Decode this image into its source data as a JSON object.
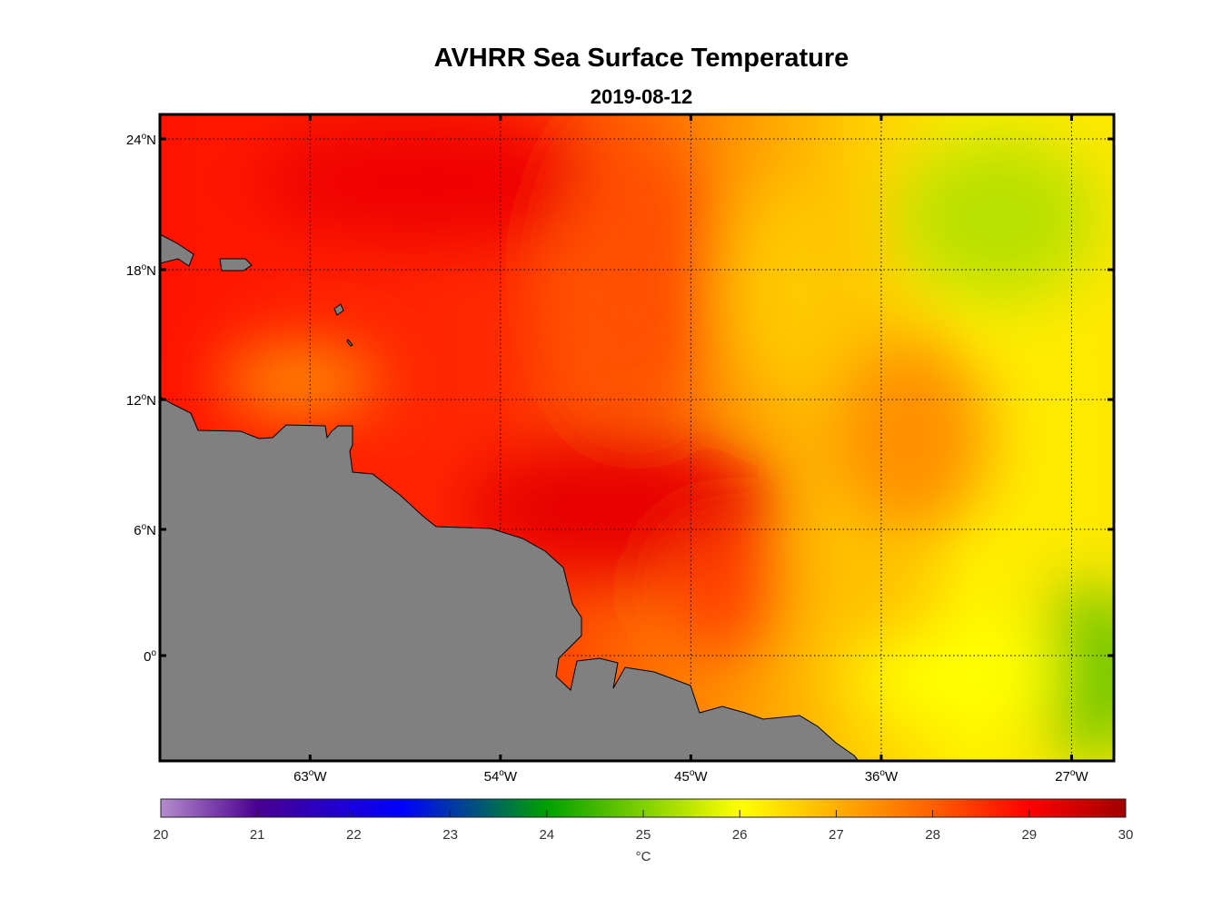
{
  "title": "AVHRR Sea Surface Temperature",
  "subtitle": "2019-08-12",
  "chart_data": {
    "type": "heatmap",
    "title": "AVHRR Sea Surface Temperature",
    "subtitle": "2019-08-12",
    "lon_range": [
      -70.1,
      -25.0
    ],
    "lat_range": [
      -5.0,
      25.1
    ],
    "lon_ticks": [
      {
        "value": -63,
        "label": "63",
        "suffix": "W"
      },
      {
        "value": -54,
        "label": "54",
        "suffix": "W"
      },
      {
        "value": -45,
        "label": "45",
        "suffix": "W"
      },
      {
        "value": -36,
        "label": "36",
        "suffix": "W"
      },
      {
        "value": -27,
        "label": "27",
        "suffix": "W"
      }
    ],
    "lat_ticks": [
      {
        "value": 24,
        "label": "24",
        "suffix": "N"
      },
      {
        "value": 18,
        "label": "18",
        "suffix": "N"
      },
      {
        "value": 12,
        "label": "12",
        "suffix": "N"
      },
      {
        "value": 6,
        "label": "6",
        "suffix": "N"
      },
      {
        "value": 0,
        "label": "0",
        "suffix": ""
      }
    ],
    "grid": true,
    "land_color": "#808080",
    "colorbar": {
      "min": 20,
      "max": 30,
      "ticks": [
        "20",
        "21",
        "22",
        "23",
        "24",
        "25",
        "26",
        "27",
        "28",
        "29",
        "30"
      ],
      "label": "°C",
      "placement": "bottom",
      "stops": [
        [
          "0",
          "#b48ccc"
        ],
        [
          "0.1",
          "#4a0090"
        ],
        [
          "0.25",
          "#0000ff"
        ],
        [
          "0.4",
          "#00a000"
        ],
        [
          "0.6",
          "#ffff00"
        ],
        [
          "0.8",
          "#ff6000"
        ],
        [
          "0.9",
          "#ff0000"
        ],
        [
          "1",
          "#a00000"
        ]
      ]
    },
    "field_summary": "West ~29-30 °C (red), east ~26-27 °C (yellow), green patches ~25 °C near 27W"
  }
}
